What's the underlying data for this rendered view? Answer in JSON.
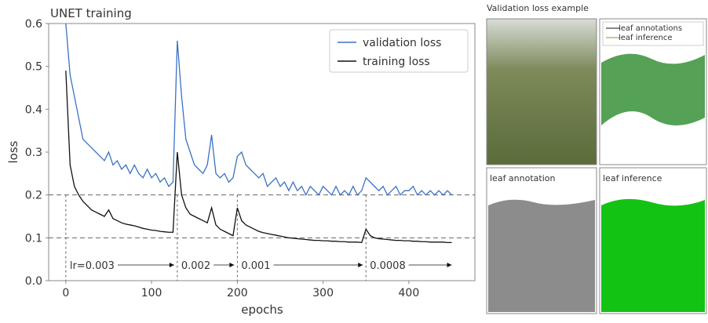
{
  "chart_data": {
    "type": "line",
    "title": "UNET training",
    "x_label": "epochs",
    "y_label": "loss",
    "xlim": [
      -20,
      477
    ],
    "ylim": [
      0,
      0.6
    ],
    "xticks": [
      0,
      100,
      200,
      300,
      400
    ],
    "yticks": [
      {
        "value": 0,
        "label": "0.0"
      },
      0.1,
      0.2,
      0.3,
      0.4,
      0.5,
      0.6
    ],
    "legend": "upper right",
    "hlines": [
      0.2,
      0.1
    ],
    "vlines": [
      0,
      130,
      200,
      350
    ],
    "annotations": [
      "lr=0.003",
      "0.002",
      "0.001",
      "0.0008"
    ],
    "x": [
      0,
      5,
      10,
      15,
      20,
      25,
      30,
      35,
      40,
      45,
      50,
      55,
      60,
      65,
      70,
      75,
      80,
      85,
      90,
      95,
      100,
      105,
      110,
      115,
      120,
      125,
      130,
      135,
      140,
      145,
      150,
      155,
      160,
      165,
      170,
      175,
      180,
      185,
      190,
      195,
      200,
      205,
      210,
      215,
      220,
      225,
      230,
      235,
      240,
      245,
      250,
      255,
      260,
      265,
      270,
      275,
      280,
      285,
      290,
      295,
      300,
      305,
      310,
      315,
      320,
      325,
      330,
      335,
      340,
      345,
      350,
      355,
      360,
      365,
      370,
      375,
      380,
      385,
      390,
      395,
      400,
      405,
      410,
      415,
      420,
      425,
      430,
      435,
      440,
      445,
      450
    ],
    "series": [
      {
        "name": "validation loss",
        "color": "#3a72c4",
        "values": [
          0.6,
          0.48,
          0.43,
          0.38,
          0.33,
          0.32,
          0.31,
          0.3,
          0.29,
          0.28,
          0.3,
          0.27,
          0.28,
          0.26,
          0.27,
          0.25,
          0.27,
          0.25,
          0.24,
          0.26,
          0.24,
          0.25,
          0.23,
          0.24,
          0.22,
          0.23,
          0.56,
          0.43,
          0.33,
          0.3,
          0.27,
          0.26,
          0.25,
          0.27,
          0.34,
          0.25,
          0.24,
          0.25,
          0.23,
          0.24,
          0.29,
          0.3,
          0.27,
          0.26,
          0.25,
          0.24,
          0.25,
          0.22,
          0.23,
          0.24,
          0.22,
          0.23,
          0.21,
          0.23,
          0.21,
          0.22,
          0.2,
          0.22,
          0.21,
          0.2,
          0.22,
          0.21,
          0.2,
          0.22,
          0.2,
          0.21,
          0.2,
          0.22,
          0.2,
          0.21,
          0.24,
          0.23,
          0.22,
          0.21,
          0.22,
          0.2,
          0.21,
          0.22,
          0.2,
          0.21,
          0.21,
          0.22,
          0.2,
          0.21,
          0.2,
          0.21,
          0.2,
          0.21,
          0.2,
          0.21,
          0.2
        ]
      },
      {
        "name": "training loss",
        "color": "#111111",
        "values": [
          0.49,
          0.27,
          0.22,
          0.2,
          0.185,
          0.175,
          0.165,
          0.16,
          0.155,
          0.15,
          0.165,
          0.145,
          0.14,
          0.135,
          0.132,
          0.13,
          0.128,
          0.125,
          0.122,
          0.12,
          0.118,
          0.117,
          0.115,
          0.114,
          0.113,
          0.113,
          0.3,
          0.2,
          0.17,
          0.155,
          0.15,
          0.145,
          0.14,
          0.135,
          0.17,
          0.13,
          0.12,
          0.115,
          0.11,
          0.105,
          0.17,
          0.14,
          0.13,
          0.125,
          0.12,
          0.115,
          0.112,
          0.11,
          0.108,
          0.106,
          0.104,
          0.102,
          0.1,
          0.099,
          0.098,
          0.097,
          0.096,
          0.095,
          0.094,
          0.094,
          0.093,
          0.093,
          0.092,
          0.092,
          0.091,
          0.091,
          0.09,
          0.09,
          0.09,
          0.089,
          0.12,
          0.105,
          0.1,
          0.098,
          0.097,
          0.096,
          0.095,
          0.094,
          0.094,
          0.093,
          0.093,
          0.092,
          0.092,
          0.091,
          0.091,
          0.09,
          0.09,
          0.09,
          0.09,
          0.089,
          0.089
        ]
      }
    ]
  },
  "panel": {
    "title": "Validation loss example",
    "legend": [
      "leaf annotations",
      "leaf inference"
    ],
    "labels": [
      "leaf annotation",
      "leaf inference"
    ]
  }
}
